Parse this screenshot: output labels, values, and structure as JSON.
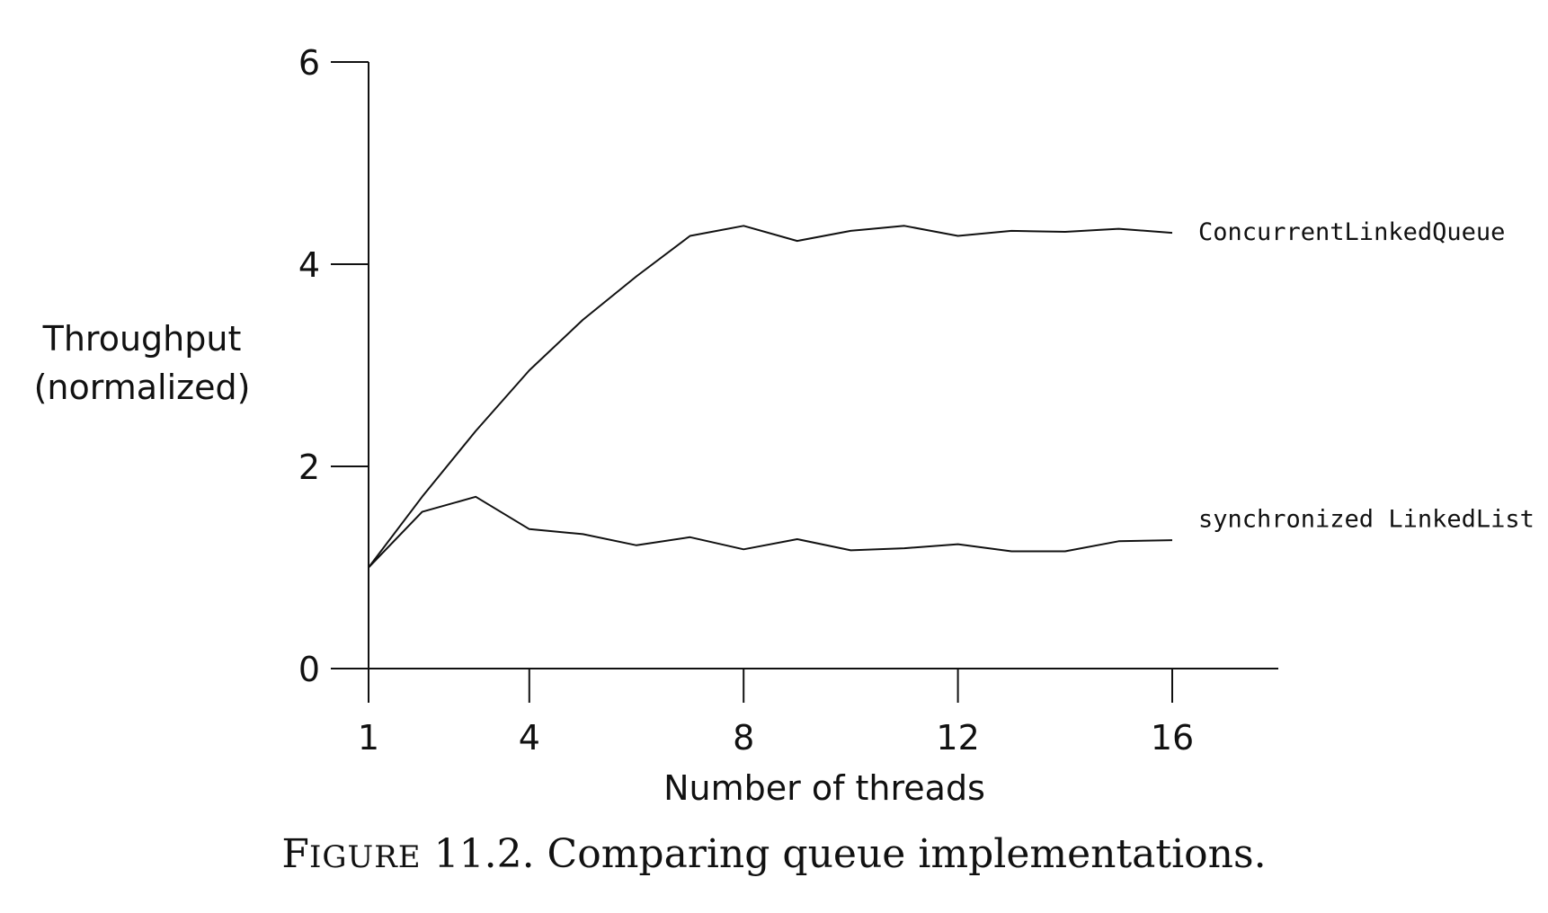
{
  "caption": {
    "figure_first_letter": "F",
    "figure_rest": "IGURE",
    "number_and_text": " 11.2. Comparing queue implementations."
  },
  "chart_data": {
    "type": "line",
    "xlabel": "Number of threads",
    "ylabel_lines": [
      "Throughput",
      "(normalized)"
    ],
    "xlim": [
      1,
      18
    ],
    "ylim": [
      0,
      6
    ],
    "x_ticks": [
      1,
      4,
      8,
      12,
      16
    ],
    "y_ticks": [
      0,
      2,
      4,
      6
    ],
    "grid": false,
    "legend": "inline labels at line ends (right)",
    "series": [
      {
        "name": "ConcurrentLinkedQueue",
        "x": [
          1,
          2,
          3,
          4,
          5,
          6,
          7,
          8,
          9,
          10,
          11,
          12,
          13,
          14,
          15,
          16
        ],
        "y": [
          1.0,
          1.7,
          2.35,
          2.95,
          3.45,
          3.88,
          4.28,
          4.38,
          4.23,
          4.33,
          4.38,
          4.28,
          4.33,
          4.32,
          4.35,
          4.31
        ]
      },
      {
        "name": "synchronized LinkedList",
        "x": [
          1,
          2,
          3,
          4,
          5,
          6,
          7,
          8,
          9,
          10,
          11,
          12,
          13,
          14,
          15,
          16
        ],
        "y": [
          1.0,
          1.55,
          1.7,
          1.38,
          1.33,
          1.22,
          1.3,
          1.18,
          1.28,
          1.17,
          1.19,
          1.23,
          1.16,
          1.16,
          1.26,
          1.27
        ]
      }
    ]
  }
}
